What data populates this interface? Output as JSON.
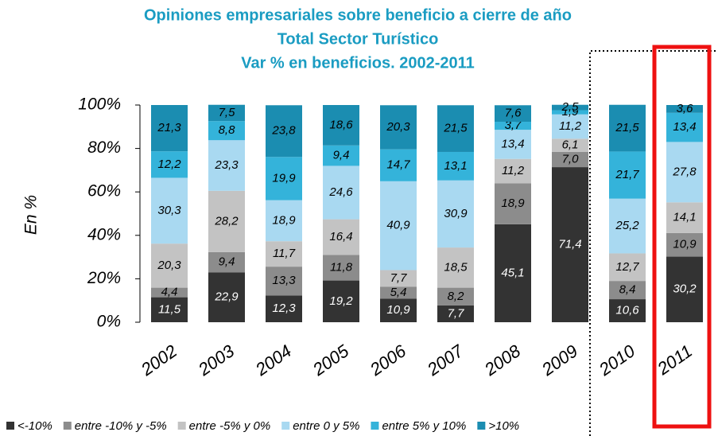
{
  "chart_data": {
    "type": "stacked_bar",
    "title": [
      "Opiniones empresariales sobre beneficio a cierre de año",
      "Total Sector Turístico",
      "Var % en beneficios. 2002-2011"
    ],
    "ylabel": "En %",
    "categories": [
      "2002",
      "2003",
      "2004",
      "2005",
      "2006",
      "2007",
      "2008",
      "2009",
      "2010",
      "2011"
    ],
    "ylim": [
      0,
      100
    ],
    "yticks": [
      {
        "value": 0,
        "label": "0%"
      },
      {
        "value": 20,
        "label": "20%"
      },
      {
        "value": 40,
        "label": "40%"
      },
      {
        "value": 60,
        "label": "60%"
      },
      {
        "value": 80,
        "label": "80%"
      },
      {
        "value": 100,
        "label": "100%"
      }
    ],
    "series": [
      {
        "name": "<-10%",
        "color": "#333333",
        "values": [
          11.5,
          22.9,
          12.3,
          19.2,
          10.9,
          7.7,
          45.1,
          71.4,
          10.6,
          30.2
        ],
        "value_labels": [
          "11,5",
          "22,9",
          "12,3",
          "19,2",
          "10,9",
          "7,7",
          "45,1",
          "71,4",
          "10,6",
          "30,2"
        ]
      },
      {
        "name": "entre -10% y -5%",
        "color": "#8c8c8c",
        "values": [
          4.4,
          9.4,
          13.3,
          11.8,
          5.4,
          8.2,
          18.9,
          7.0,
          8.4,
          10.9
        ],
        "value_labels": [
          "4,4",
          "9,4",
          "13,3",
          "11,8",
          "5,4",
          "8,2",
          "18,9",
          "7,0",
          "8,4",
          "10,9"
        ]
      },
      {
        "name": "entre -5% y 0%",
        "color": "#c3c3c3",
        "values": [
          20.3,
          28.2,
          11.7,
          16.4,
          7.7,
          18.5,
          11.2,
          6.1,
          12.7,
          14.1
        ],
        "value_labels": [
          "20,3",
          "28,2",
          "11,7",
          "16,4",
          "7,7",
          "18,5",
          "11,2",
          "6,1",
          "12,7",
          "14,1"
        ]
      },
      {
        "name": "entre 0 y 5%",
        "color": "#a9d9f1",
        "values": [
          30.3,
          23.3,
          18.9,
          24.6,
          40.9,
          30.9,
          13.4,
          11.2,
          25.2,
          27.8
        ],
        "value_labels": [
          "30,3",
          "23,3",
          "18,9",
          "24,6",
          "40,9",
          "30,9",
          "13,4",
          "11,2",
          "25,2",
          "27,8"
        ]
      },
      {
        "name": "entre 5% y 10%",
        "color": "#34b3da",
        "values": [
          12.2,
          8.8,
          19.9,
          9.4,
          14.7,
          13.1,
          3.7,
          1.9,
          21.7,
          13.4
        ],
        "value_labels": [
          "12,2",
          "8,8",
          "19,9",
          "9,4",
          "14,7",
          "13,1",
          "3,7",
          "1,9",
          "21,7",
          "13,4"
        ]
      },
      {
        "name": ">10%",
        "color": "#1b8db1",
        "values": [
          21.3,
          7.5,
          23.8,
          18.6,
          20.3,
          21.5,
          7.6,
          2.5,
          21.5,
          3.6
        ],
        "value_labels": [
          "21,3",
          "7,5",
          "23,8",
          "18,6",
          "20,3",
          "21,5",
          "7,6",
          "2,5",
          "21,5",
          "3,6"
        ]
      }
    ]
  }
}
